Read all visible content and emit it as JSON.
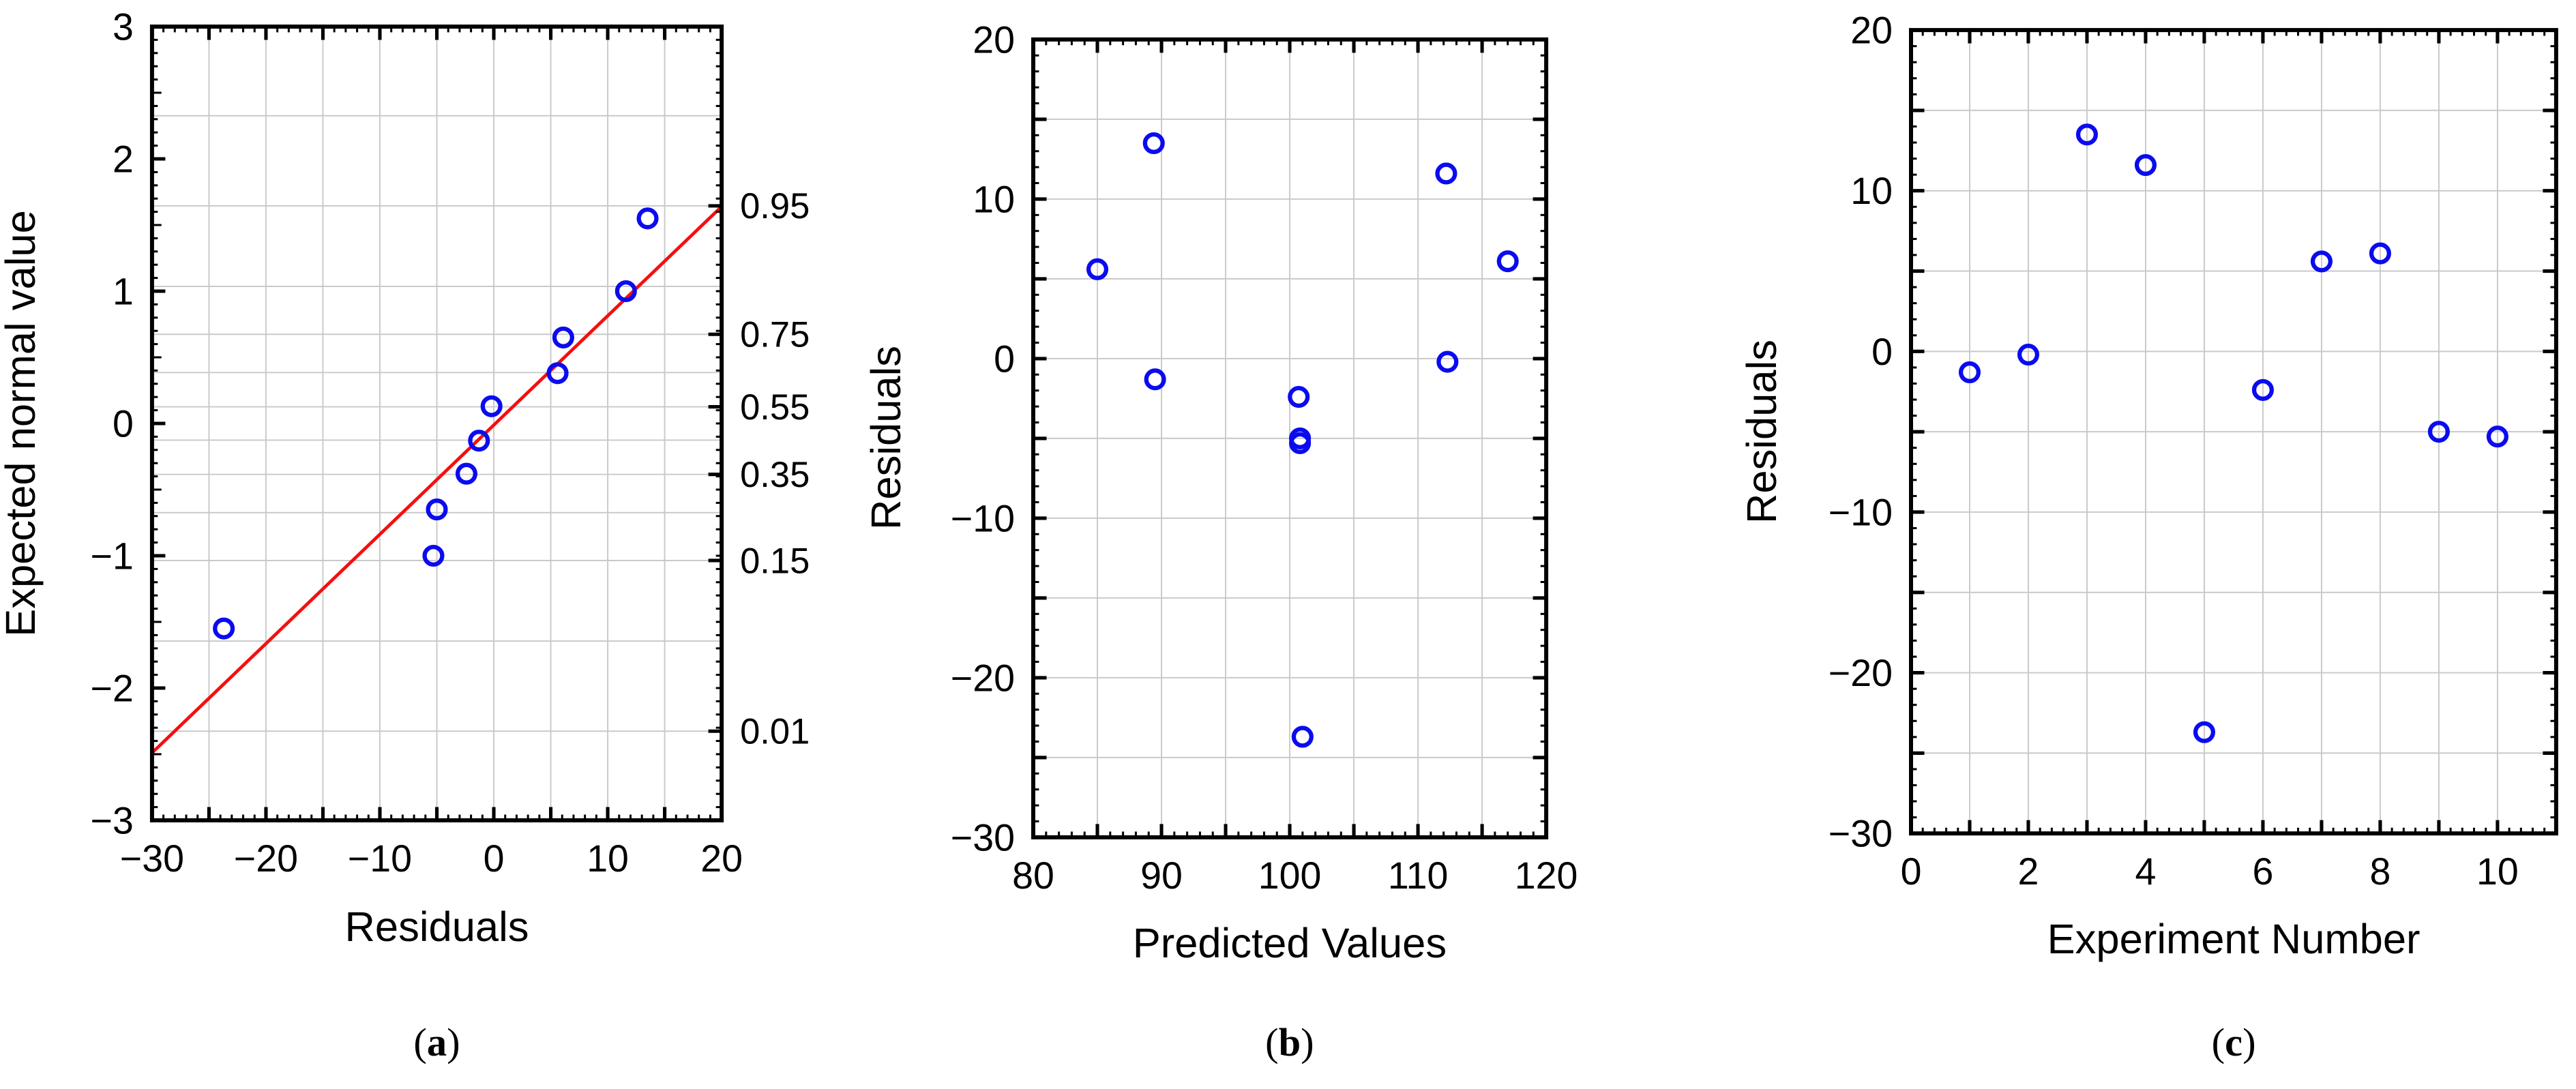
{
  "figure": {
    "background": "#ffffff",
    "axis_color": "#000000",
    "grid_color": "#c9c9c9",
    "text_color": "#000000"
  },
  "captions": [
    {
      "prefix": "(",
      "letter": "a",
      "suffix": ")"
    },
    {
      "prefix": "(",
      "letter": "b",
      "suffix": ")"
    },
    {
      "prefix": "(",
      "letter": "c",
      "suffix": ")"
    }
  ],
  "chart_data": [
    {
      "id": "a",
      "type": "scatter",
      "title": "",
      "xlabel": "Residuals",
      "ylabel": "Expected normal value",
      "xlim": [
        -30,
        20
      ],
      "ylim": [
        -3,
        3
      ],
      "grid": true,
      "x_major_step": 5,
      "x_minor_step": 1,
      "y_major_step": 1,
      "y_medium_step": 0.5,
      "y_minor_step": 0.1,
      "x_tick_labels": [
        {
          "v": -30,
          "t": "−30"
        },
        {
          "v": -20,
          "t": "−20"
        },
        {
          "v": -10,
          "t": "−10"
        },
        {
          "v": 0,
          "t": "0"
        },
        {
          "v": 10,
          "t": "10"
        },
        {
          "v": 20,
          "t": "20"
        }
      ],
      "y_tick_labels": [
        {
          "v": 3,
          "t": "3"
        },
        {
          "v": 2,
          "t": "2"
        },
        {
          "v": 1,
          "t": "1"
        },
        {
          "v": 0,
          "t": "0"
        },
        {
          "v": -1,
          "t": "−1"
        },
        {
          "v": -2,
          "t": "−2"
        },
        {
          "v": -3,
          "t": "−3"
        }
      ],
      "grid_x": [
        -25,
        -20,
        -15,
        -10,
        -5,
        0,
        5,
        10,
        15
      ],
      "grid_y": [
        2.326,
        1.645,
        1.036,
        0.674,
        0.385,
        0.126,
        -0.126,
        -0.385,
        -0.674,
        -1.036,
        -1.645,
        -2.326
      ],
      "right_axis": {
        "minor_step": 0.1,
        "labels": [
          {
            "z": 1.645,
            "t": "0.95"
          },
          {
            "z": 0.674,
            "t": "0.75"
          },
          {
            "z": 0.126,
            "t": "0.55"
          },
          {
            "z": -0.385,
            "t": "0.35"
          },
          {
            "z": -1.036,
            "t": "0.15"
          },
          {
            "z": -2.326,
            "t": "0.01"
          }
        ]
      },
      "points": [
        [
          -23.7,
          -1.55
        ],
        [
          -5.3,
          -1.0
        ],
        [
          -5.0,
          -0.65
        ],
        [
          -2.4,
          -0.38
        ],
        [
          -1.3,
          -0.13
        ],
        [
          -0.2,
          0.13
        ],
        [
          5.6,
          0.38
        ],
        [
          6.1,
          0.65
        ],
        [
          11.6,
          1.0
        ],
        [
          13.5,
          1.55
        ]
      ],
      "fit_line": {
        "x1": -30,
        "y1": -2.49,
        "x2": 20,
        "y2": 1.64
      },
      "point_color": "#0b0bf0",
      "line_color": "#f50f0f"
    },
    {
      "id": "b",
      "type": "scatter",
      "title": "",
      "xlabel": "Predicted Values",
      "ylabel": "Residuals",
      "xlim": [
        80,
        120
      ],
      "ylim": [
        -30,
        20
      ],
      "grid": true,
      "x_major_step": 5,
      "x_minor_step": 1,
      "y_major_step": 5,
      "y_minor_step": 1,
      "x_tick_labels": [
        {
          "v": 80,
          "t": "80"
        },
        {
          "v": 90,
          "t": "90"
        },
        {
          "v": 100,
          "t": "100"
        },
        {
          "v": 110,
          "t": "110"
        },
        {
          "v": 120,
          "t": "120"
        }
      ],
      "y_tick_labels": [
        {
          "v": 20,
          "t": "20"
        },
        {
          "v": 10,
          "t": "10"
        },
        {
          "v": 0,
          "t": "0"
        },
        {
          "v": -10,
          "t": "−10"
        },
        {
          "v": -20,
          "t": "−20"
        },
        {
          "v": -30,
          "t": "−30"
        }
      ],
      "grid_x": [
        85,
        90,
        95,
        100,
        105,
        110,
        115
      ],
      "grid_y": [
        15,
        10,
        5,
        0,
        -5,
        -10,
        -15,
        -20,
        -25
      ],
      "points": [
        [
          85.0,
          5.6
        ],
        [
          89.4,
          13.5
        ],
        [
          89.5,
          -1.3
        ],
        [
          100.7,
          -2.4
        ],
        [
          100.8,
          -5.0
        ],
        [
          100.8,
          -5.3
        ],
        [
          101.0,
          -23.7
        ],
        [
          112.2,
          11.6
        ],
        [
          112.3,
          -0.2
        ],
        [
          117.0,
          6.1
        ]
      ],
      "point_color": "#0b0bf0"
    },
    {
      "id": "c",
      "type": "scatter",
      "title": "",
      "xlabel": "Experiment Number",
      "ylabel": "Residuals",
      "xlim": [
        0,
        11
      ],
      "ylim": [
        -30,
        20
      ],
      "grid": true,
      "x_major_step": 1,
      "x_minor_step": 0.2,
      "y_major_step": 5,
      "y_minor_step": 1,
      "x_tick_labels": [
        {
          "v": 0,
          "t": "0"
        },
        {
          "v": 2,
          "t": "2"
        },
        {
          "v": 4,
          "t": "4"
        },
        {
          "v": 6,
          "t": "6"
        },
        {
          "v": 8,
          "t": "8"
        },
        {
          "v": 10,
          "t": "10"
        }
      ],
      "y_tick_labels": [
        {
          "v": 20,
          "t": "20"
        },
        {
          "v": 10,
          "t": "10"
        },
        {
          "v": 0,
          "t": "0"
        },
        {
          "v": -10,
          "t": "−10"
        },
        {
          "v": -20,
          "t": "−20"
        },
        {
          "v": -30,
          "t": "−30"
        }
      ],
      "grid_x": [
        1,
        2,
        3,
        4,
        5,
        6,
        7,
        8,
        9,
        10
      ],
      "grid_y": [
        15,
        10,
        5,
        0,
        -5,
        -10,
        -15,
        -20,
        -25
      ],
      "points": [
        [
          1,
          -1.3
        ],
        [
          2,
          -0.2
        ],
        [
          3,
          13.5
        ],
        [
          4,
          11.6
        ],
        [
          5,
          -23.7
        ],
        [
          6,
          -2.4
        ],
        [
          7,
          5.6
        ],
        [
          8,
          6.1
        ],
        [
          9,
          -5.0
        ],
        [
          10,
          -5.3
        ]
      ],
      "point_color": "#0b0bf0"
    }
  ]
}
